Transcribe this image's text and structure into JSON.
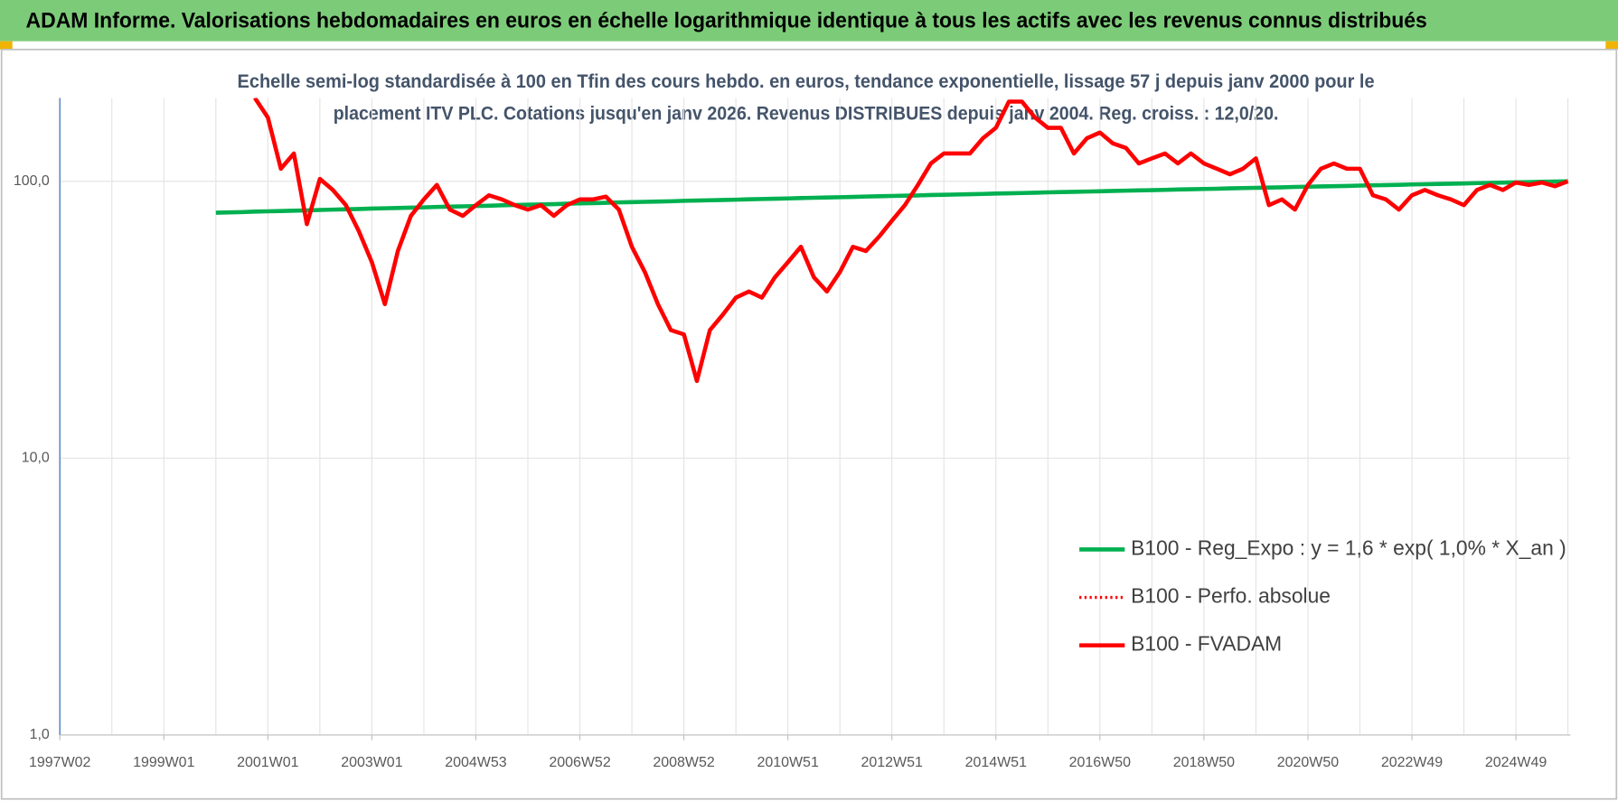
{
  "chart_data": {
    "type": "line",
    "title": "ADAM Informe. Valorisations hebdomadaires en euros en échelle logarithmique identique à tous les actifs avec les revenus connus distribués",
    "subtitle": [
      "Echelle semi-log standardisée à 100 en Tfin des cours hebdo. en euros, tendance exponentielle, lissage 57 j depuis janv 2000 pour le",
      "placement ITV PLC. Cotations jusqu'en janv 2026.  Revenus DISTRIBUES depuis janv 2004. Reg. croiss. : 12,0/20."
    ],
    "log_y": true,
    "grid": true,
    "legend": "lower right",
    "ylim": [
      1,
      200
    ],
    "yticks": [
      {
        "value": 1,
        "label": "1,0"
      },
      {
        "value": 10,
        "label": "10,0"
      },
      {
        "value": 100,
        "label": "100,0"
      }
    ],
    "categories": [
      "1997W02",
      null,
      null,
      null,
      null,
      null,
      null,
      null,
      "1999W01",
      null,
      null,
      null,
      null,
      null,
      null,
      null,
      "2001W01",
      null,
      null,
      null,
      null,
      null,
      null,
      null,
      "2003W01",
      null,
      null,
      null,
      null,
      null,
      null,
      null,
      "2004W53",
      null,
      null,
      null,
      null,
      null,
      null,
      null,
      "2006W52",
      null,
      null,
      null,
      null,
      null,
      null,
      null,
      "2008W52",
      null,
      null,
      null,
      null,
      null,
      null,
      null,
      "2010W51",
      null,
      null,
      null,
      null,
      null,
      null,
      null,
      "2012W51",
      null,
      null,
      null,
      null,
      null,
      null,
      null,
      "2014W51",
      null,
      null,
      null,
      null,
      null,
      null,
      null,
      "2016W50",
      null,
      null,
      null,
      null,
      null,
      null,
      null,
      "2018W50",
      null,
      null,
      null,
      null,
      null,
      null,
      null,
      "2020W50",
      null,
      null,
      null,
      null,
      null,
      null,
      null,
      "2022W49",
      null,
      null,
      null,
      null,
      null,
      null,
      null,
      "2024W49",
      null,
      null,
      null,
      null
    ],
    "series": [
      {
        "name": "B100 - Reg_Expo : y = 1,6 * exp( 1,0% *  X_an )",
        "color": "#00b050",
        "style": "solid",
        "values": [
          null,
          null,
          null,
          null,
          null,
          null,
          null,
          null,
          null,
          null,
          null,
          null,
          77.0,
          77.2,
          77.4,
          77.7,
          77.9,
          78.1,
          78.3,
          78.5,
          78.8,
          79.0,
          79.2,
          79.4,
          79.7,
          79.9,
          80.1,
          80.3,
          80.5,
          80.8,
          81.0,
          81.2,
          81.4,
          81.6,
          81.9,
          82.1,
          82.3,
          82.5,
          82.7,
          83.0,
          83.2,
          83.4,
          83.6,
          83.9,
          84.1,
          84.3,
          84.5,
          84.7,
          85.0,
          85.2,
          85.4,
          85.6,
          85.8,
          86.1,
          86.3,
          86.5,
          86.7,
          87.0,
          87.2,
          87.4,
          87.6,
          87.8,
          88.1,
          88.3,
          88.5,
          88.7,
          88.9,
          89.2,
          89.4,
          89.6,
          89.8,
          90.0,
          90.3,
          90.5,
          90.7,
          90.9,
          91.2,
          91.4,
          91.6,
          91.8,
          92.0,
          92.3,
          92.5,
          92.7,
          92.9,
          93.1,
          93.4,
          93.6,
          93.8,
          94.0,
          94.3,
          94.5,
          94.7,
          94.9,
          95.1,
          95.4,
          95.6,
          95.8,
          96.0,
          96.2,
          96.5,
          96.7,
          96.9,
          97.1,
          97.4,
          97.6,
          97.8,
          98.0,
          98.2,
          98.5,
          98.7,
          98.9,
          99.1,
          99.3,
          99.6,
          99.8,
          100.0
        ]
      },
      {
        "name": "B100 - Perfo. absolue",
        "color": "#ff0000",
        "style": "dotted",
        "values": [
          null,
          null,
          null,
          null,
          null,
          null,
          null,
          null,
          null,
          null,
          null,
          null,
          null,
          null,
          null,
          200,
          170,
          111,
          126,
          70,
          102,
          93,
          82,
          66,
          51,
          36,
          56,
          75,
          86,
          97,
          79,
          75,
          82,
          89,
          86,
          82,
          79,
          82,
          75,
          82,
          86,
          86,
          88,
          79,
          58,
          47,
          36,
          29,
          28,
          19,
          29,
          33,
          38,
          40,
          38,
          45,
          51,
          58,
          45,
          40,
          47,
          58,
          56,
          63,
          72,
          82,
          97,
          116,
          126,
          126,
          126,
          143,
          156,
          194,
          194,
          170,
          156,
          156,
          126,
          143,
          150,
          137,
          132,
          116,
          121,
          126,
          116,
          126,
          116,
          111,
          106,
          111,
          121,
          82,
          86,
          79,
          97,
          111,
          116,
          111,
          111,
          89,
          86,
          79,
          89,
          93,
          89,
          86,
          82,
          93,
          97,
          93,
          99,
          97,
          99,
          96,
          100
        ]
      },
      {
        "name": "B100 - FVADAM",
        "color": "#ff0000",
        "style": "solid",
        "values": [
          null,
          null,
          null,
          null,
          null,
          null,
          null,
          null,
          null,
          null,
          null,
          null,
          null,
          null,
          null,
          200,
          170,
          111,
          126,
          70,
          102,
          93,
          82,
          66,
          51,
          36,
          56,
          75,
          86,
          97,
          79,
          75,
          82,
          89,
          86,
          82,
          79,
          82,
          75,
          82,
          86,
          86,
          88,
          79,
          58,
          47,
          36,
          29,
          28,
          19,
          29,
          33,
          38,
          40,
          38,
          45,
          51,
          58,
          45,
          40,
          47,
          58,
          56,
          63,
          72,
          82,
          97,
          116,
          126,
          126,
          126,
          143,
          156,
          194,
          194,
          170,
          156,
          156,
          126,
          143,
          150,
          137,
          132,
          116,
          121,
          126,
          116,
          126,
          116,
          111,
          106,
          111,
          121,
          82,
          86,
          79,
          97,
          111,
          116,
          111,
          111,
          89,
          86,
          79,
          89,
          93,
          89,
          86,
          82,
          93,
          97,
          93,
          99,
          97,
          99,
          96,
          100
        ]
      }
    ]
  }
}
